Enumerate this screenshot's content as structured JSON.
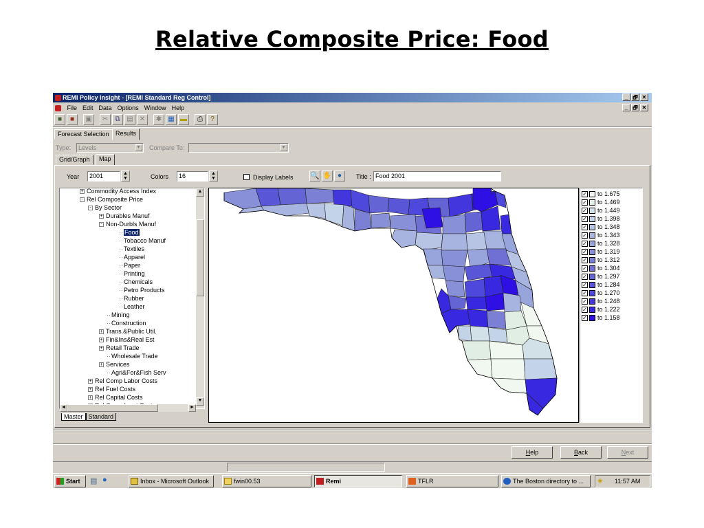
{
  "slide": {
    "title": "Relative Composite Price: Food"
  },
  "window": {
    "title": "REMI Policy Insight - [REMI Standard Reg Control]",
    "buttons": [
      "_",
      "🗗",
      "✕"
    ]
  },
  "menu": [
    "File",
    "Edit",
    "Data",
    "Options",
    "Window",
    "Help"
  ],
  "tabs": {
    "forecast": "Forecast Selection",
    "results": "Results",
    "grid": "Grid/Graph",
    "map": "Map"
  },
  "filters": {
    "type_label": "Type:",
    "type_value": "Levels",
    "compare_label": "Compare To:",
    "compare_value": ""
  },
  "controls": {
    "year_label": "Year",
    "year_value": "2001",
    "colors_label": "Colors",
    "colors_value": "16",
    "display_labels": "Display Labels",
    "title_label": "Title :",
    "title_value": "Food  2001"
  },
  "tree": [
    {
      "label": "Commodity Access Index",
      "level": 2,
      "exp": "+"
    },
    {
      "label": "Rel Composite Price",
      "level": 2,
      "exp": "-"
    },
    {
      "label": "By Sector",
      "level": 3,
      "exp": "-"
    },
    {
      "label": "Durables Manuf",
      "level": 4,
      "exp": "+"
    },
    {
      "label": "Non-Durbls Manuf",
      "level": 4,
      "exp": "-"
    },
    {
      "label": "Food",
      "level": 5,
      "exp": "",
      "selected": true
    },
    {
      "label": "Tobacco Manuf",
      "level": 5,
      "exp": ""
    },
    {
      "label": "Textiles",
      "level": 5,
      "exp": ""
    },
    {
      "label": "Apparel",
      "level": 5,
      "exp": ""
    },
    {
      "label": "Paper",
      "level": 5,
      "exp": ""
    },
    {
      "label": "Printing",
      "level": 5,
      "exp": ""
    },
    {
      "label": "Chemicals",
      "level": 5,
      "exp": ""
    },
    {
      "label": "Petro Products",
      "level": 5,
      "exp": ""
    },
    {
      "label": "Rubber",
      "level": 5,
      "exp": ""
    },
    {
      "label": "Leather",
      "level": 5,
      "exp": ""
    },
    {
      "label": "Mining",
      "level": 4,
      "exp": ""
    },
    {
      "label": "Construction",
      "level": 4,
      "exp": ""
    },
    {
      "label": "Trans.&Public Util.",
      "level": 4,
      "exp": "+"
    },
    {
      "label": "Fin&Ins&Real Est",
      "level": 4,
      "exp": "+"
    },
    {
      "label": "Retail Trade",
      "level": 4,
      "exp": "+"
    },
    {
      "label": "Wholesale Trade",
      "level": 4,
      "exp": ""
    },
    {
      "label": "Services",
      "level": 4,
      "exp": "+"
    },
    {
      "label": "Agri&For&Fish Serv",
      "level": 4,
      "exp": ""
    },
    {
      "label": "Rel Comp Labor Costs",
      "level": 3,
      "exp": "+"
    },
    {
      "label": "Rel Fuel Costs",
      "level": 3,
      "exp": "+"
    },
    {
      "label": "Rel Capital Costs",
      "level": 3,
      "exp": "+"
    },
    {
      "label": "Rel Comp Input Costs",
      "level": 3,
      "exp": "+"
    }
  ],
  "tree_tabs": [
    "Master",
    "Standard"
  ],
  "legend": [
    {
      "label": "to 1.675",
      "color": "#f0f8f0"
    },
    {
      "label": "to 1.469",
      "color": "#e0eee4"
    },
    {
      "label": "to 1.449",
      "color": "#d2e0e8"
    },
    {
      "label": "to 1.398",
      "color": "#c4d4e8"
    },
    {
      "label": "to 1.348",
      "color": "#b8c4e4"
    },
    {
      "label": "to 1.343",
      "color": "#a8b4e0"
    },
    {
      "label": "to 1.328",
      "color": "#98a4dc"
    },
    {
      "label": "to 1.319",
      "color": "#8890d8"
    },
    {
      "label": "to 1.312",
      "color": "#7c80d4"
    },
    {
      "label": "to 1.304",
      "color": "#7070d4"
    },
    {
      "label": "to 1.297",
      "color": "#6464d4"
    },
    {
      "label": "to 1.284",
      "color": "#5a56d8"
    },
    {
      "label": "to 1.270",
      "color": "#4e48dc"
    },
    {
      "label": "to 1.248",
      "color": "#4236dc"
    },
    {
      "label": "to 1.222",
      "color": "#3828e0"
    },
    {
      "label": "to 1.158",
      "color": "#2e10e4"
    }
  ],
  "buttons": {
    "help": "Help",
    "back": "Back",
    "next": "Next"
  },
  "taskbar": {
    "start": "Start",
    "tasks": [
      "Inbox - Microsoft Outlook",
      "fwin00.53",
      "Remi",
      "TFLR",
      "The Boston directory to ..."
    ],
    "clock": "11:57 AM"
  }
}
